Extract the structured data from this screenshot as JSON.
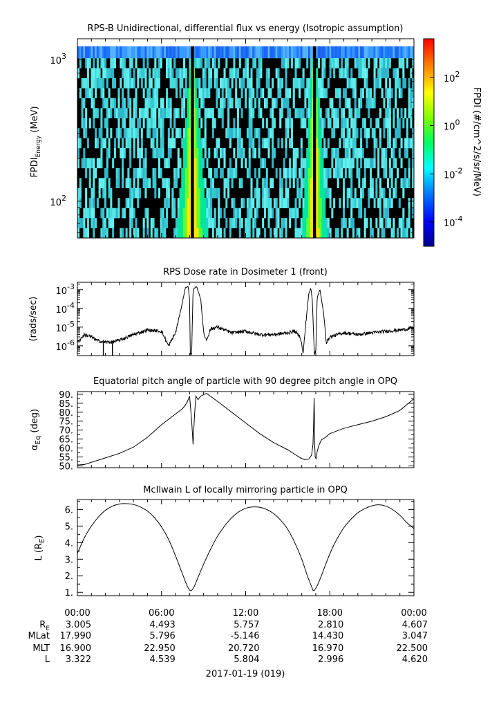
{
  "chart_data": [
    {
      "type": "heatmap",
      "title": "RPS-B  Unidirectional, differential flux vs energy (Isotropic assumption)",
      "ylabel": "FPDI",
      "ylabel_subscript": "Energy",
      "ylabel_unit": "(MeV)",
      "yscale": "log",
      "ylim": [
        55,
        1400
      ],
      "yticks": [
        {
          "value": 100,
          "base": "10",
          "exp": "2"
        },
        {
          "value": 1000,
          "base": "10",
          "exp": "3"
        }
      ],
      "x_hours": [
        0,
        24
      ],
      "colorbar": {
        "label": "FPDI (#/cm^2/s/sr/MeV)",
        "scale": "log",
        "range_exp": [
          -5.0,
          3.6
        ],
        "ticks": [
          {
            "base": "10",
            "exp": "2",
            "value_exp": 2
          },
          {
            "base": "10",
            "exp": "0",
            "value_exp": 0
          },
          {
            "base": "10",
            "exp": "-2",
            "value_exp": -2
          },
          {
            "base": "10",
            "exp": "-4",
            "value_exp": -4
          }
        ]
      },
      "features": [
        {
          "description": "high-flux band (radiation belt)",
          "center_hour": 8.2,
          "top_half_width_h": 0.15,
          "bottom_half_width_h": 1.1
        },
        {
          "description": "high-flux band (radiation belt)",
          "center_hour": 16.9,
          "top_half_width_h": 0.15,
          "bottom_half_width_h": 0.9
        }
      ]
    },
    {
      "type": "line",
      "title": "RPS  Dose rate in Dosimeter 1 (front)",
      "ylabel": "(rads/sec)",
      "yscale": "log",
      "ylim": [
        3e-07,
        0.0025
      ],
      "yticks": [
        {
          "base": "10",
          "exp": "-3",
          "value_exp": -3
        },
        {
          "base": "10",
          "exp": "-4",
          "value_exp": -4
        },
        {
          "base": "10",
          "exp": "-5",
          "value_exp": -5
        },
        {
          "base": "10",
          "exp": "-6",
          "value_exp": -6
        }
      ],
      "series": [
        {
          "x_hours": [
            0,
            0.5,
            1,
            1.5,
            1.9,
            2.5,
            3,
            4,
            5,
            6,
            6.5,
            7,
            7.4,
            7.7,
            7.9,
            8.0,
            8.05,
            8.15,
            8.25,
            8.5,
            8.8,
            9.0,
            9.2,
            9.5,
            10,
            11,
            12,
            13,
            14,
            15,
            15.5,
            15.9,
            16.1,
            16.3,
            16.5,
            16.65,
            16.75,
            16.9,
            17.0,
            17.1,
            17.3,
            17.55,
            17.75,
            18,
            19,
            20,
            21,
            22,
            23,
            24
          ],
          "y": [
            1.5e-06,
            4e-06,
            3e-06,
            1.8e-06,
            1.6e-06,
            1.6e-06,
            2e-06,
            4e-06,
            7e-06,
            6e-06,
            1e-06,
            5e-06,
            0.0001,
            0.0013,
            0.0015,
            0.0003,
            4e-07,
            4e-07,
            0.001,
            0.0015,
            0.0003,
            5e-06,
            2e-06,
            8e-06,
            1e-05,
            5e-06,
            6e-06,
            4e-06,
            4e-06,
            5e-06,
            6e-06,
            3e-06,
            4e-07,
            2e-05,
            0.0006,
            0.0012,
            0.0003,
            4e-07,
            4e-07,
            0.0004,
            0.001,
            6e-05,
            1.5e-06,
            3e-06,
            5e-06,
            4e-06,
            5e-06,
            6e-06,
            7e-06,
            9e-06
          ]
        }
      ],
      "annotations": [
        {
          "description": "data-gap spikes",
          "x_hours": [
            1.85,
            2.5
          ]
        }
      ]
    },
    {
      "type": "line",
      "title": "Equatorial pitch angle of particle with 90 degree pitch angle in OPQ",
      "ylabel": "α",
      "ylabel_subscript": "Eq",
      "ylabel_unit": "(deg)",
      "ylim": [
        49,
        91.5
      ],
      "yticks": [
        50,
        55,
        60,
        65,
        70,
        75,
        80,
        85,
        90
      ],
      "tick_labels": [
        "50.",
        "55.",
        "60.",
        "65.",
        "70.",
        "75.",
        "80.",
        "85.",
        "90."
      ],
      "series": [
        {
          "x_hours": [
            0,
            0.5,
            1,
            2,
            3,
            4,
            5,
            6,
            7,
            7.5,
            7.7,
            7.85,
            8.0,
            8.15,
            8.25,
            8.35,
            8.45,
            8.6,
            8.8,
            9.2,
            10,
            11,
            12,
            13,
            14,
            15,
            15.6,
            15.9,
            16.2,
            16.5,
            16.7,
            16.8,
            16.85,
            16.88,
            16.9,
            16.92,
            16.96,
            17.02,
            17.1,
            17.25,
            17.4,
            17.7,
            18,
            19,
            20,
            21,
            22,
            23,
            24
          ],
          "y": [
            50.5,
            50.8,
            52,
            54.5,
            57,
            60.5,
            66,
            73,
            79,
            82,
            84,
            86,
            89,
            75,
            62,
            78,
            89,
            87,
            89,
            90.5,
            86,
            80,
            74,
            68,
            63,
            59,
            56,
            54.5,
            53.5,
            53.8,
            56,
            62,
            75,
            88,
            80,
            62,
            55,
            54,
            58,
            62,
            64.5,
            66,
            68,
            71,
            73,
            75,
            77.5,
            81,
            87.5
          ]
        }
      ]
    },
    {
      "type": "line",
      "title": "McIlwain L of locally mirroring particle in OPQ",
      "ylabel": "L (R",
      "ylabel_subscript": "E",
      "ylabel_suffix": ")",
      "ylim": [
        0.8,
        6.6
      ],
      "yticks": [
        1,
        2,
        3,
        4,
        5,
        6
      ],
      "tick_labels": [
        "1.",
        "2.",
        "3.",
        "4.",
        "5.",
        "6."
      ],
      "series": [
        {
          "x_hours": [
            0,
            0.5,
            1,
            1.5,
            2,
            2.5,
            3,
            3.5,
            4,
            4.5,
            5,
            5.5,
            6,
            6.5,
            7,
            7.5,
            7.8,
            8.05,
            8.3,
            8.6,
            9,
            9.5,
            10,
            10.5,
            11,
            11.5,
            12,
            12.5,
            13,
            13.5,
            14,
            14.5,
            15,
            15.5,
            16,
            16.4,
            16.7,
            16.85,
            17.1,
            17.4,
            17.8,
            18.2,
            18.6,
            19,
            19.5,
            20,
            20.5,
            21,
            21.5,
            22,
            22.5,
            23,
            23.5,
            24
          ],
          "y": [
            3.35,
            4.3,
            5.0,
            5.55,
            5.95,
            6.2,
            6.33,
            6.35,
            6.3,
            6.15,
            5.9,
            5.5,
            4.95,
            4.2,
            3.2,
            2.1,
            1.45,
            1.1,
            1.3,
            1.9,
            2.7,
            3.6,
            4.4,
            5.0,
            5.5,
            5.85,
            6.07,
            6.15,
            6.13,
            6.0,
            5.75,
            5.35,
            4.8,
            4.0,
            3.0,
            2.0,
            1.35,
            1.1,
            1.4,
            2.0,
            2.9,
            3.7,
            4.35,
            4.9,
            5.4,
            5.8,
            6.05,
            6.22,
            6.28,
            6.2,
            5.98,
            5.65,
            5.2,
            4.85
          ]
        }
      ]
    }
  ],
  "x_axis": {
    "tick_labels": [
      "00:00",
      "06:00",
      "12:00",
      "18:00",
      "00:00"
    ],
    "rows": [
      {
        "label": "R",
        "label_subscript": "E",
        "values": [
          "3.005",
          "4.493",
          "5.757",
          "2.810",
          "4.607"
        ]
      },
      {
        "label": "MLat",
        "values": [
          "17.990",
          "5.796",
          "-5.146",
          "14.430",
          "3.047"
        ]
      },
      {
        "label": "MLT",
        "values": [
          "16.900",
          "22.950",
          "20.720",
          "16.970",
          "22.500"
        ]
      },
      {
        "label": "L",
        "values": [
          "3.322",
          "4.539",
          "5.804",
          "2.996",
          "4.620"
        ]
      }
    ],
    "date_label": "2017-01-19 (019)"
  }
}
